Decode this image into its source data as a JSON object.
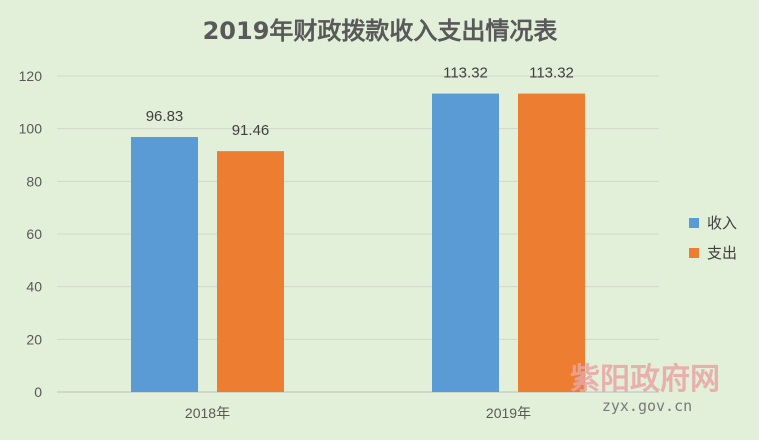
{
  "chart_data": {
    "type": "bar",
    "title": "2019年财政拨款收入支出情况表",
    "categories": [
      "2018年",
      "2019年"
    ],
    "series": [
      {
        "name": "收入",
        "values": [
          96.83,
          113.32
        ],
        "color": "#5b9bd5"
      },
      {
        "name": "支出",
        "values": [
          91.46,
          113.32
        ],
        "color": "#ed7d31"
      }
    ],
    "data_labels": [
      [
        "96.83",
        "113.32"
      ],
      [
        "91.46",
        "113.32"
      ]
    ],
    "ylim": [
      0,
      120
    ],
    "yticks": [
      0,
      20,
      40,
      60,
      80,
      100,
      120
    ],
    "grid": true,
    "legend_position": "right"
  },
  "watermark": {
    "name": "紫阳政府网",
    "domain": "zyx.gov.cn"
  },
  "colors": {
    "background": "#e2efd9",
    "grid": "#d0d8cc",
    "axis": "#bfbfbf"
  }
}
